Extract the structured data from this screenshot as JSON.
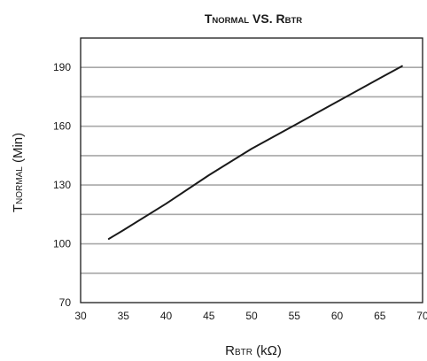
{
  "chart_data": {
    "type": "line",
    "title": {
      "t_main": "T",
      "t_sub": "NORMAL",
      "vs": " VS. ",
      "r_main": "R",
      "r_sub": "BTR"
    },
    "xlabel": {
      "main": "R",
      "sub": "BTR",
      "unit": " (kΩ)"
    },
    "ylabel": {
      "main": "T",
      "sub": "NORMAL",
      "unit": " (Min)"
    },
    "xlim": [
      30,
      70
    ],
    "ylim": [
      70,
      205
    ],
    "x_ticks": [
      "30",
      "35",
      "40",
      "45",
      "50",
      "55",
      "60",
      "65",
      "70"
    ],
    "y_ticks": [
      "70",
      "100",
      "130",
      "160",
      "190"
    ],
    "grid": {
      "horizontal": true,
      "values": [
        85,
        100,
        115,
        130,
        145,
        160,
        175,
        190
      ]
    },
    "line_color": "#1a1a1a",
    "grid_color": "#a8a8a8",
    "series": [
      {
        "x": [
          33.3,
          35,
          40,
          45,
          50,
          55,
          60,
          65,
          67.6
        ],
        "values": [
          102.5,
          107,
          120.5,
          135,
          148.5,
          160.5,
          172.5,
          184.5,
          190.7
        ]
      }
    ]
  }
}
